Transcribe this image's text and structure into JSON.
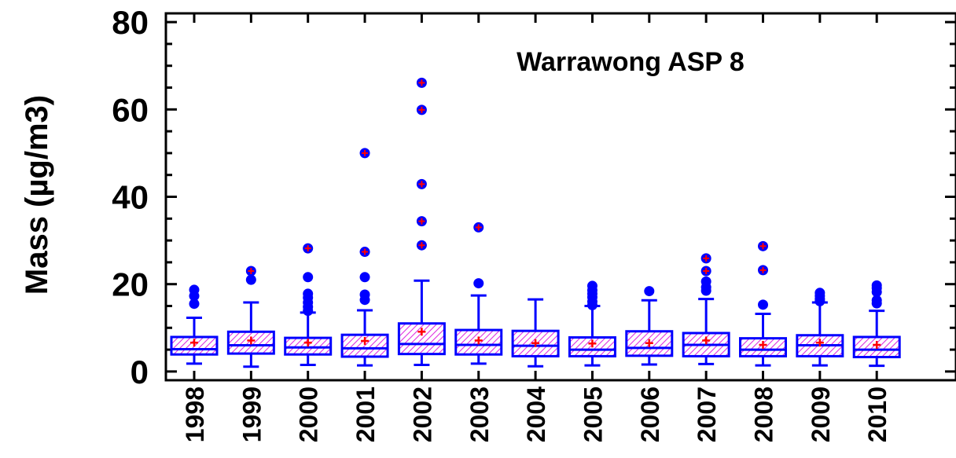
{
  "chart_data": {
    "type": "box",
    "title": "Warrawong ASP 8",
    "ylabel": "Mass (µg/m3)",
    "xlabel": "",
    "ylim": [
      -2,
      82
    ],
    "yticks": [
      0,
      20,
      40,
      60,
      80
    ],
    "grid": false,
    "legend": "none",
    "colors": {
      "box": "#0000ff",
      "hatch": "#e030e0",
      "mean": "#ff0000",
      "outlier": "#0000ff",
      "axis": "#000000"
    },
    "categories": [
      "1998",
      "1999",
      "2000",
      "2001",
      "2002",
      "2003",
      "2004",
      "2005",
      "2006",
      "2007",
      "2008",
      "2009",
      "2010"
    ],
    "boxes": [
      {
        "min": 1.8,
        "q1": 3.9,
        "median": 5.1,
        "q3": 7.9,
        "max": 12.3,
        "mean": 6.6,
        "outliers": [
          15.5,
          17.3,
          18.7
        ]
      },
      {
        "min": 1.1,
        "q1": 4.1,
        "median": 6.0,
        "q3": 9.1,
        "max": 15.8,
        "mean": 7.1,
        "outliers": [
          21.0,
          23.0
        ]
      },
      {
        "min": 1.5,
        "q1": 3.9,
        "median": 5.5,
        "q3": 7.7,
        "max": 13.5,
        "mean": 6.6,
        "outliers": [
          13.9,
          14.8,
          15.8,
          16.9,
          17.8,
          21.6,
          28.2
        ]
      },
      {
        "min": 1.4,
        "q1": 3.4,
        "median": 5.3,
        "q3": 8.4,
        "max": 14.0,
        "mean": 7.0,
        "outliers": [
          16.4,
          17.6,
          21.6,
          27.4,
          50.0
        ]
      },
      {
        "min": 1.5,
        "q1": 4.0,
        "median": 6.3,
        "q3": 11.0,
        "max": 20.8,
        "mean": 9.1,
        "outliers": [
          28.9,
          34.4,
          42.9,
          59.9,
          66.1
        ]
      },
      {
        "min": 1.8,
        "q1": 3.9,
        "median": 6.1,
        "q3": 9.5,
        "max": 17.4,
        "mean": 7.1,
        "outliers": [
          20.2,
          33.0
        ]
      },
      {
        "min": 1.2,
        "q1": 3.5,
        "median": 5.9,
        "q3": 9.3,
        "max": 16.5,
        "mean": 6.5,
        "outliers": []
      },
      {
        "min": 1.4,
        "q1": 3.5,
        "median": 5.0,
        "q3": 7.8,
        "max": 15.0,
        "mean": 6.4,
        "outliers": [
          15.2,
          16.0,
          17.0,
          17.8,
          18.6,
          19.6
        ]
      },
      {
        "min": 1.6,
        "q1": 3.6,
        "median": 5.4,
        "q3": 9.2,
        "max": 16.3,
        "mean": 6.5,
        "outliers": [
          18.4
        ]
      },
      {
        "min": 1.7,
        "q1": 3.5,
        "median": 6.1,
        "q3": 8.8,
        "max": 16.6,
        "mean": 7.1,
        "outliers": [
          18.5,
          19.3,
          20.6,
          23.0,
          25.9
        ]
      },
      {
        "min": 1.4,
        "q1": 3.5,
        "median": 5.0,
        "q3": 7.6,
        "max": 13.2,
        "mean": 6.1,
        "outliers": [
          15.3,
          23.2,
          28.7
        ]
      },
      {
        "min": 1.4,
        "q1": 3.5,
        "median": 6.0,
        "q3": 8.3,
        "max": 15.8,
        "mean": 6.6,
        "outliers": [
          16.1,
          16.6,
          17.3,
          18.0
        ]
      },
      {
        "min": 1.3,
        "q1": 3.3,
        "median": 5.0,
        "q3": 7.9,
        "max": 13.9,
        "mean": 6.1,
        "outliers": [
          15.6,
          16.3,
          18.2,
          19.1,
          19.7
        ]
      }
    ]
  }
}
